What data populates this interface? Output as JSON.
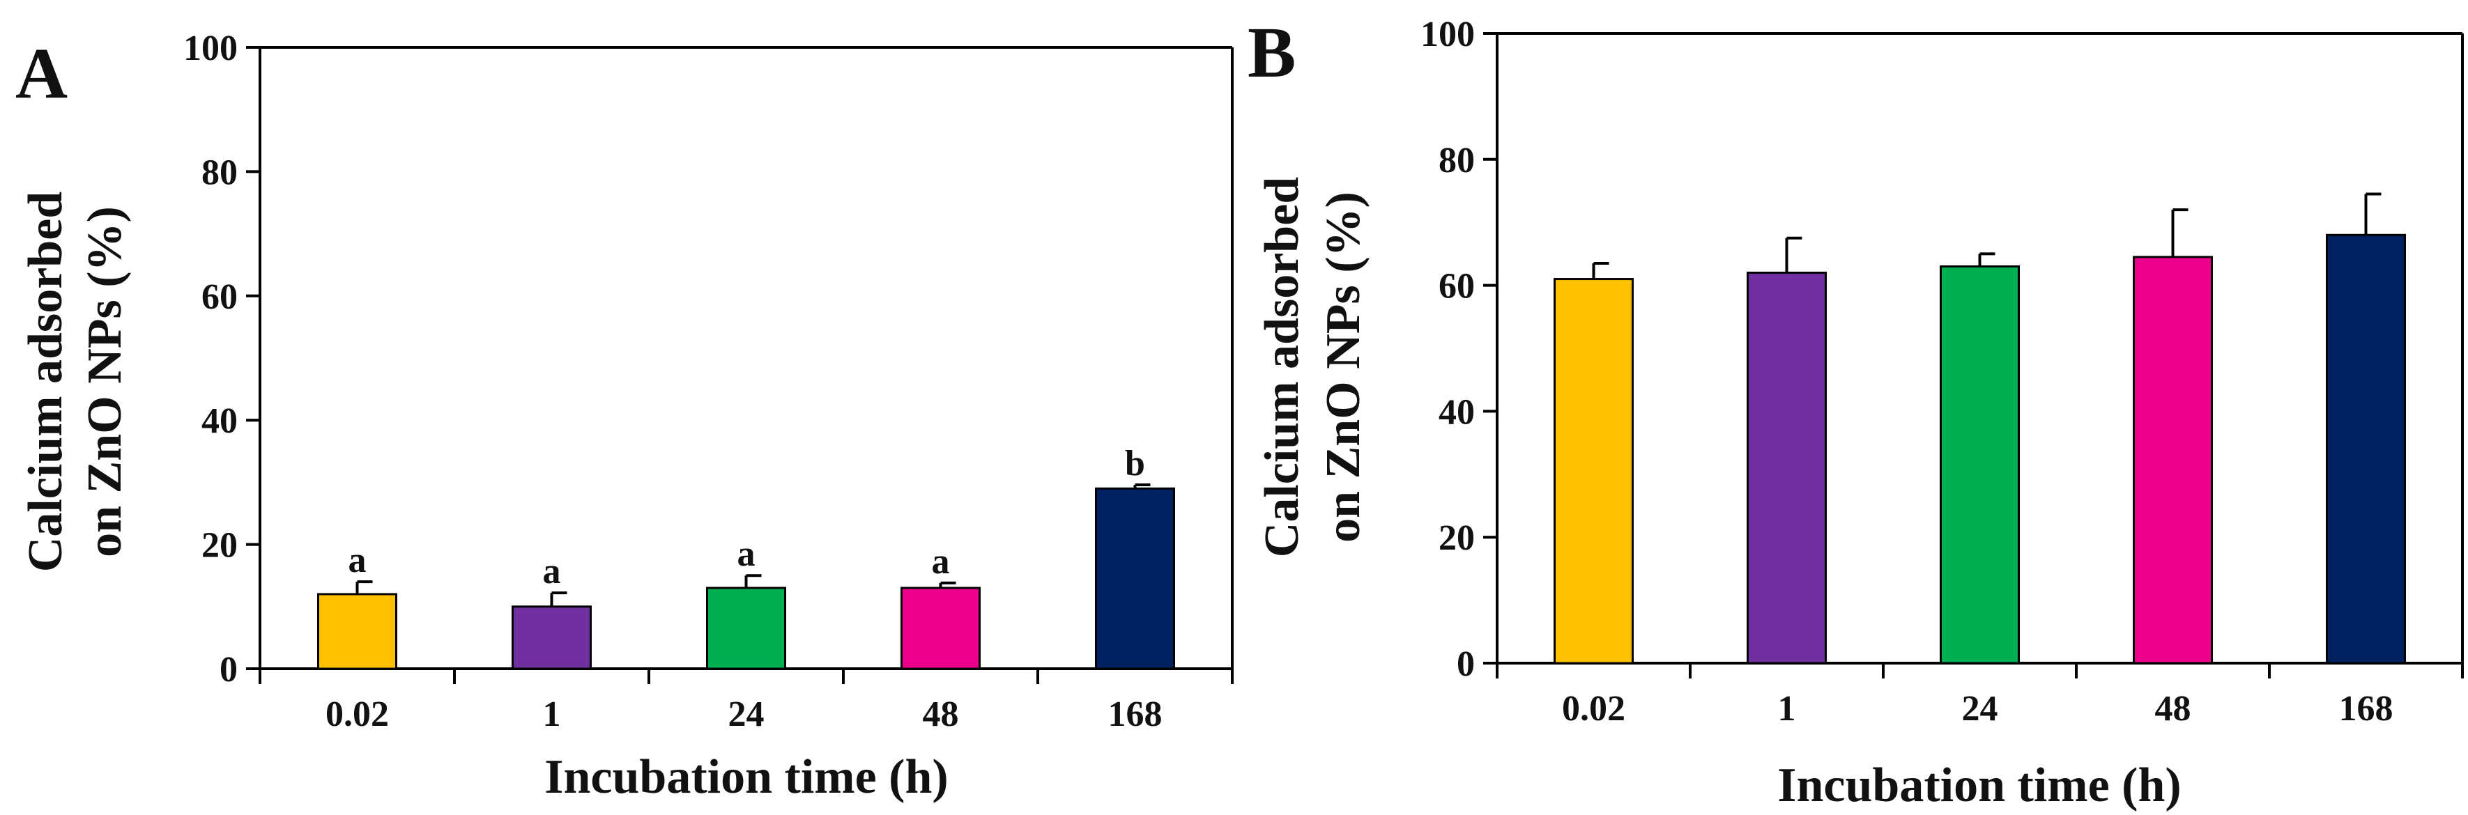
{
  "chart_data": [
    {
      "type": "bar",
      "panel_label": "A",
      "categories": [
        "0.02",
        "1",
        "24",
        "48",
        "168"
      ],
      "values": [
        12,
        10,
        13,
        13,
        29
      ],
      "errors": [
        2,
        2.2,
        2,
        0.8,
        0.6
      ],
      "significance": [
        "a",
        "a",
        "a",
        "a",
        "b"
      ],
      "colors": [
        "#FFC000",
        "#7030A0",
        "#00B050",
        "#EC008C",
        "#002060"
      ],
      "xlabel": "Incubation time (h)",
      "ylabel_lines": [
        "Calcium adsorbed",
        "on ZnO NPs (%)"
      ],
      "ylim": [
        0,
        100
      ],
      "yticks": [
        "0",
        "20",
        "40",
        "60",
        "80",
        "100"
      ],
      "grid": false
    },
    {
      "type": "bar",
      "panel_label": "B",
      "categories": [
        "0.02",
        "1",
        "24",
        "48",
        "168"
      ],
      "values": [
        61,
        62,
        63,
        64.5,
        68
      ],
      "errors": [
        2.5,
        5.5,
        2,
        7.5,
        6.5
      ],
      "colors": [
        "#FFC000",
        "#7030A0",
        "#00B050",
        "#EC008C",
        "#002060"
      ],
      "xlabel": "Incubation time (h)",
      "ylabel_lines": [
        "Calcium adsorbed",
        "on ZnO NPs (%)"
      ],
      "ylim": [
        0,
        100
      ],
      "yticks": [
        "0",
        "20",
        "40",
        "60",
        "80",
        "100"
      ],
      "grid": false
    }
  ]
}
